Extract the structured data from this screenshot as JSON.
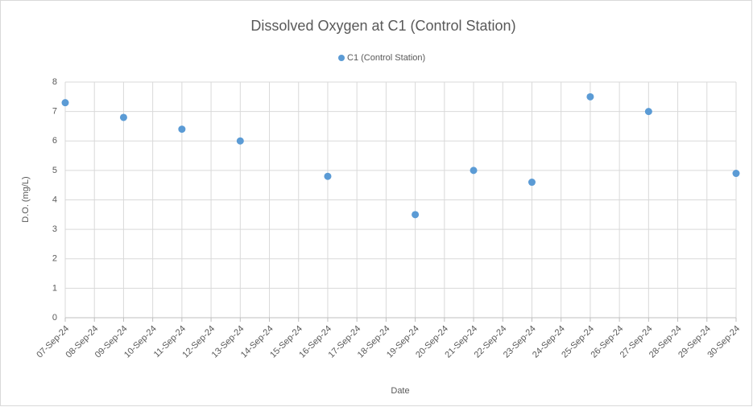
{
  "chart_data": {
    "type": "scatter",
    "title": "Dissolved Oxygen at C1 (Control Station)",
    "x_label": "Date",
    "y_label": "D.O. (mg/L)",
    "categories": [
      "07-Sep-24",
      "08-Sep-24",
      "09-Sep-24",
      "10-Sep-24",
      "11-Sep-24",
      "12-Sep-24",
      "13-Sep-24",
      "14-Sep-24",
      "15-Sep-24",
      "16-Sep-24",
      "17-Sep-24",
      "18-Sep-24",
      "19-Sep-24",
      "20-Sep-24",
      "21-Sep-24",
      "22-Sep-24",
      "23-Sep-24",
      "24-Sep-24",
      "25-Sep-24",
      "26-Sep-24",
      "27-Sep-24",
      "28-Sep-24",
      "29-Sep-24",
      "30-Sep-24"
    ],
    "series": [
      {
        "name": "C1 (Control Station)",
        "color": "#5b9bd5",
        "values": [
          7.3,
          null,
          6.8,
          null,
          6.4,
          null,
          6.0,
          null,
          null,
          4.8,
          null,
          null,
          3.5,
          null,
          5.0,
          null,
          4.6,
          null,
          7.5,
          null,
          7.0,
          null,
          null,
          4.9
        ]
      }
    ],
    "ylim": [
      0,
      8
    ],
    "yticks": [
      0,
      1,
      2,
      3,
      4,
      5,
      6,
      7,
      8
    ],
    "grid": true,
    "legend": "top"
  }
}
